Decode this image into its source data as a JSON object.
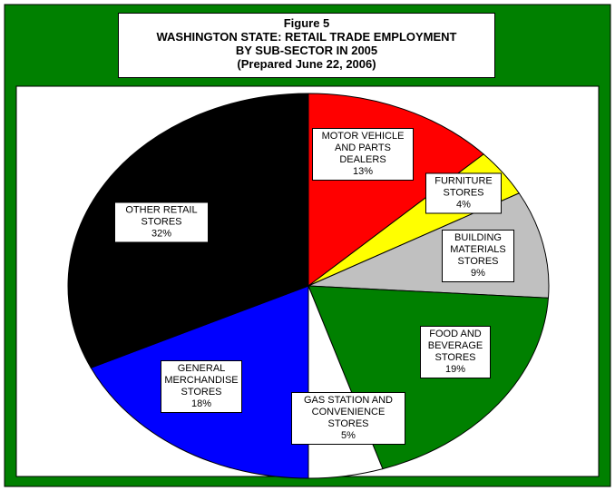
{
  "chart_data": {
    "type": "pie",
    "title": [
      "Figure 5",
      "WASHINGTON STATE: RETAIL TRADE EMPLOYMENT",
      "BY SUB-SECTOR IN 2005",
      "(Prepared June 22, 2006)"
    ],
    "categories": [
      "MOTOR VEHICLE AND PARTS DEALERS",
      "FURNITURE STORES",
      "BUILDING MATERIALS STORES",
      "FOOD AND BEVERAGE STORES",
      "GAS STATION AND CONVENIENCE STORES",
      "GENERAL MERCHANDISE STORES",
      "OTHER RETAIL STORES"
    ],
    "values": [
      13,
      4,
      9,
      19,
      5,
      18,
      32
    ],
    "value_labels": [
      "13%",
      "4%",
      "9%",
      "19%",
      "5%",
      "18%",
      "32%"
    ],
    "colors": [
      "#ff0000",
      "#ffff00",
      "#c0c0c0",
      "#008000",
      "#ffffff",
      "#0000ff",
      "#000000"
    ]
  }
}
